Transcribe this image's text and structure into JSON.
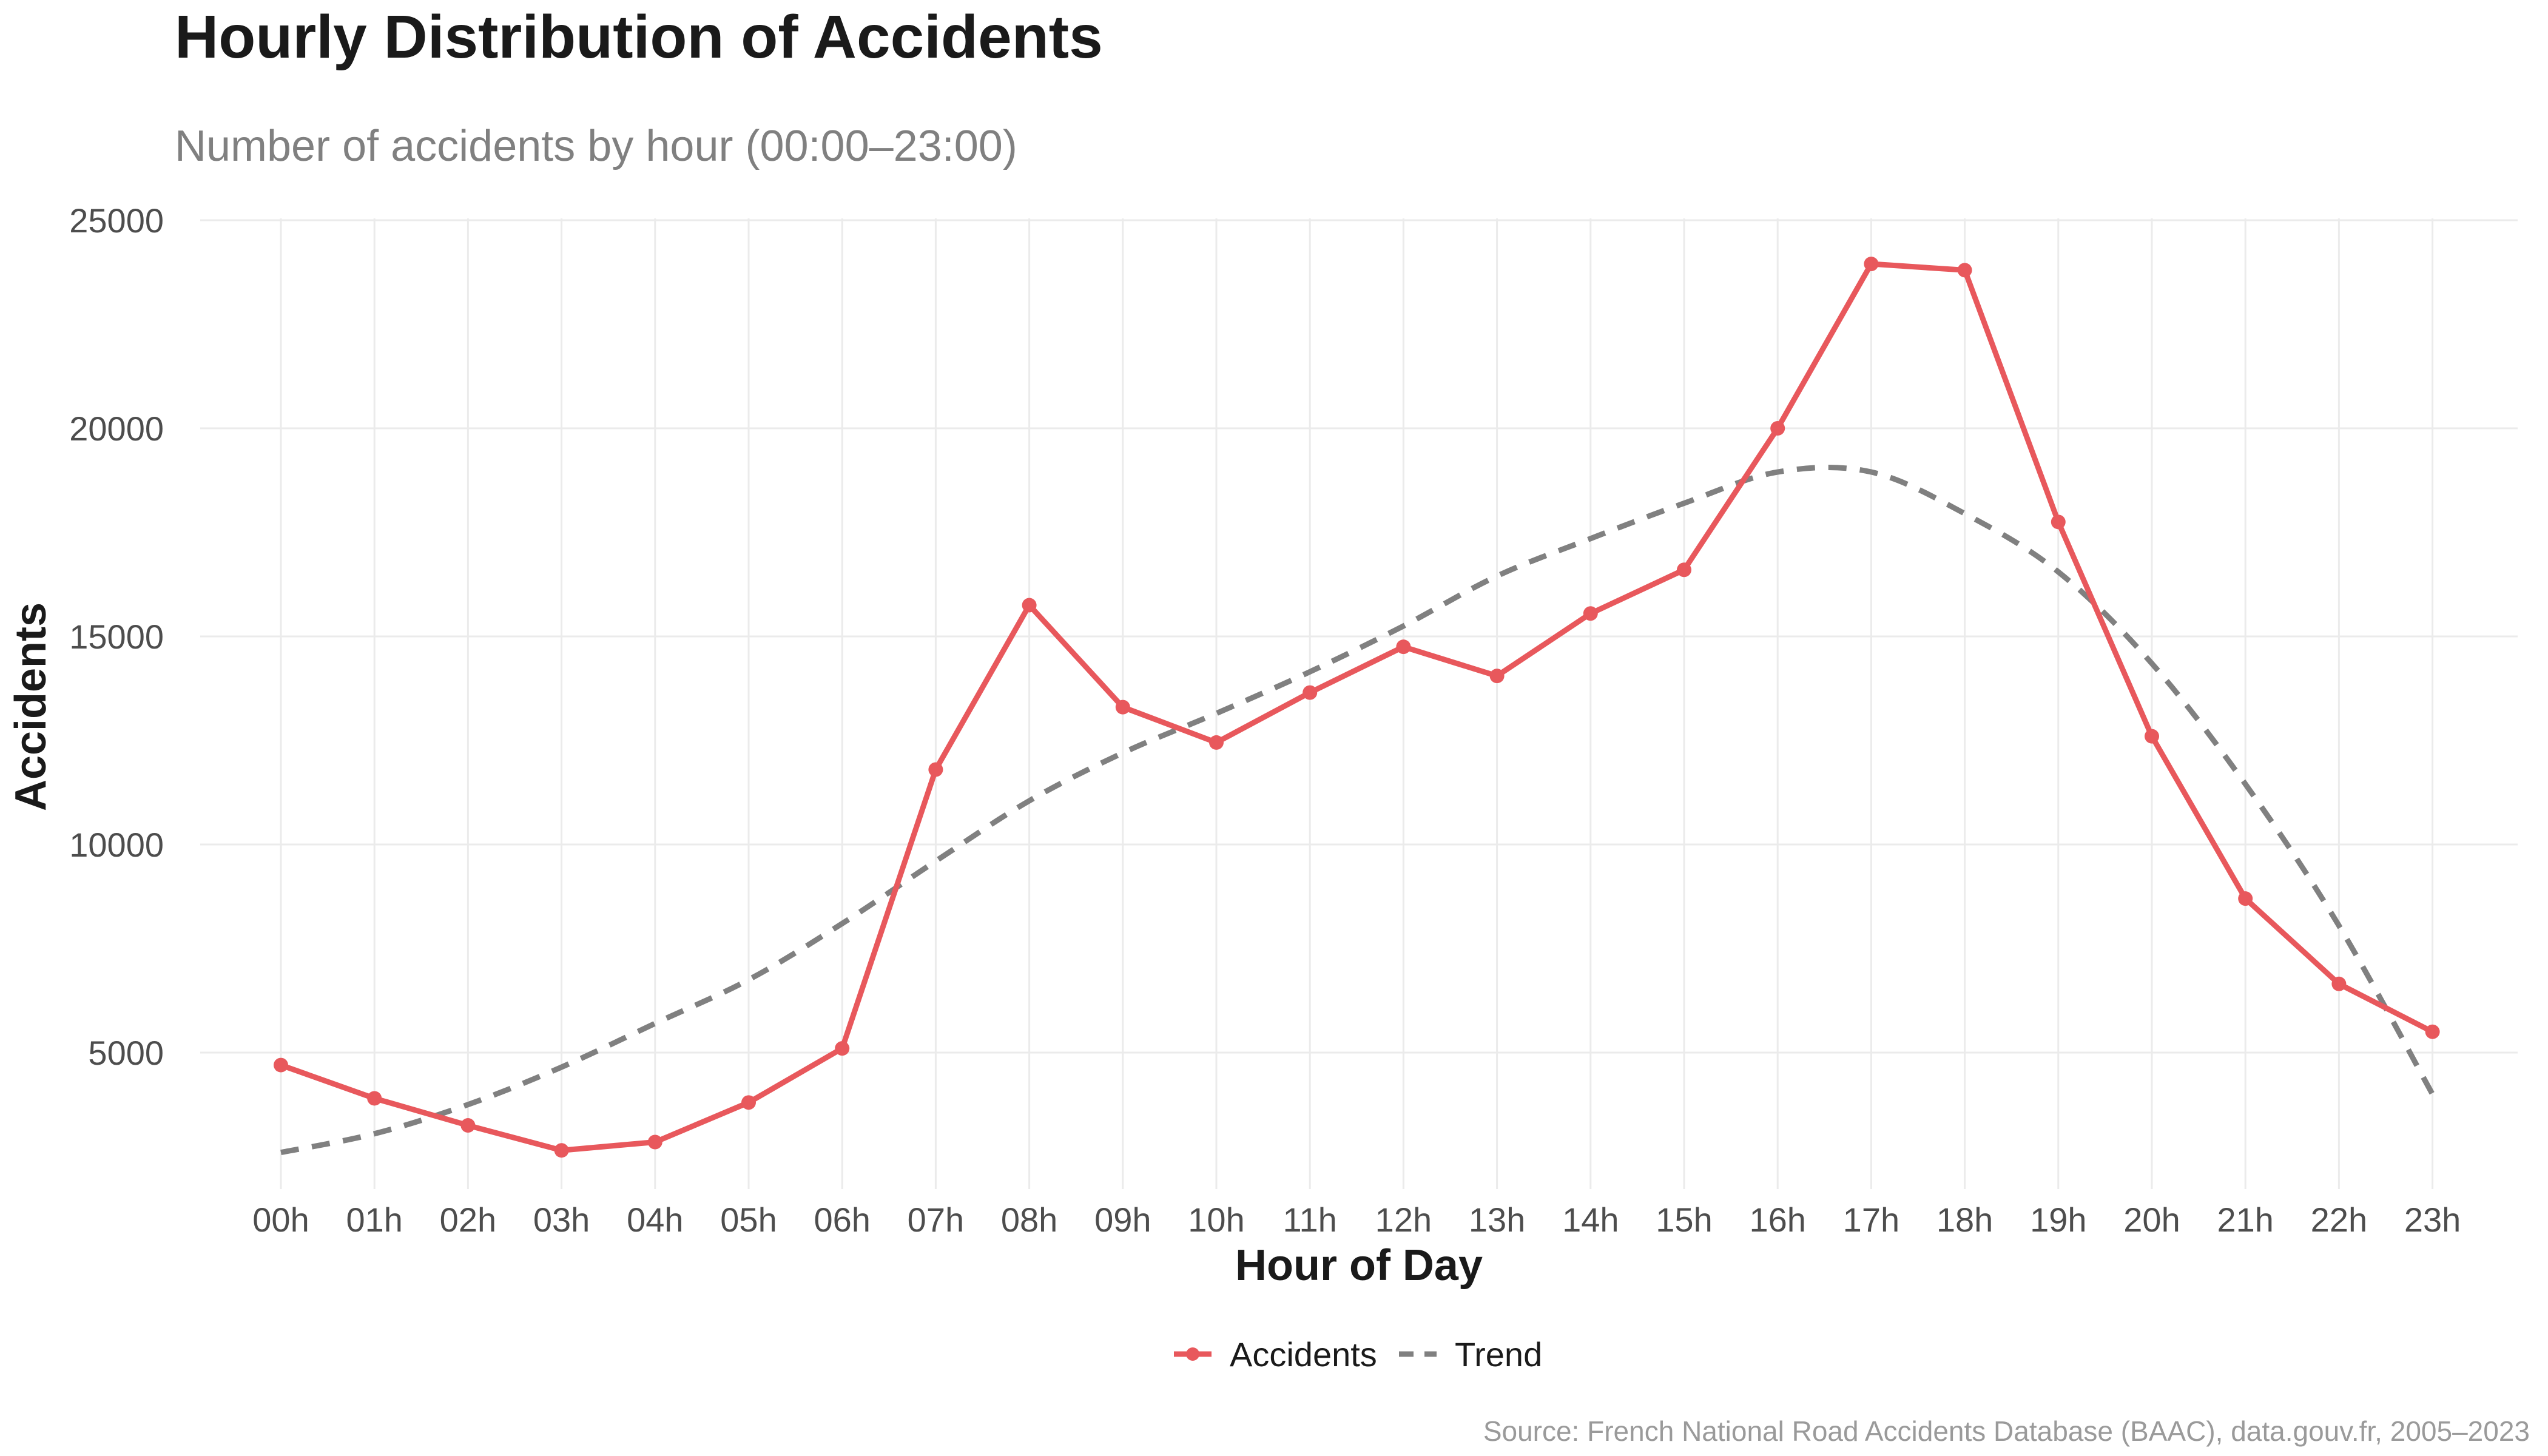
{
  "chart_data": {
    "type": "line",
    "title": "Hourly Distribution of Accidents",
    "subtitle": "Number of accidents by hour (00:00–23:00)",
    "xlabel": "Hour of Day",
    "ylabel": "Accidents",
    "caption": "Source: French National Road Accidents Database (BAAC), data.gouv.fr, 2005–2023",
    "categories": [
      "00h",
      "01h",
      "02h",
      "03h",
      "04h",
      "05h",
      "06h",
      "07h",
      "08h",
      "09h",
      "10h",
      "11h",
      "12h",
      "13h",
      "14h",
      "15h",
      "16h",
      "17h",
      "18h",
      "19h",
      "20h",
      "21h",
      "22h",
      "23h"
    ],
    "y_ticks": [
      "5000",
      "10000",
      "15000",
      "20000",
      "25000"
    ],
    "ylim": [
      1400,
      25000
    ],
    "grid": true,
    "legend_position": "bottom",
    "series": [
      {
        "name": "Accidents",
        "style": "solid-with-points",
        "color": "#e8585c",
        "values": [
          4700,
          3900,
          3250,
          2650,
          2850,
          3800,
          5100,
          11800,
          15750,
          13300,
          12450,
          13650,
          14750,
          14050,
          15550,
          16600,
          20000,
          23950,
          23800,
          17750,
          12600,
          8700,
          6650,
          5500
        ]
      },
      {
        "name": "Trend",
        "style": "dashed",
        "color": "#808080",
        "values": [
          2600,
          3050,
          3750,
          4650,
          5700,
          6750,
          8100,
          9600,
          11050,
          12200,
          13150,
          14150,
          15250,
          16450,
          17350,
          18200,
          18950,
          18950,
          17950,
          16550,
          14350,
          11450,
          8050,
          4000
        ]
      }
    ]
  }
}
